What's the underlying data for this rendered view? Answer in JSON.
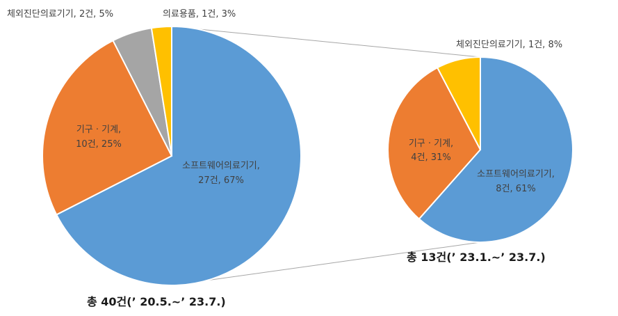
{
  "chart_data": [
    {
      "type": "pie",
      "title": "",
      "categories": [
        "소프트웨어의료기기",
        "기구 · 기계",
        "체외진단의료기기",
        "의료용품"
      ],
      "values": [
        27,
        10,
        2,
        1
      ],
      "percents": [
        67,
        25,
        5,
        3
      ],
      "labels": [
        {
          "line1": "소프트웨어의료기기,",
          "line2": "27건, 67%"
        },
        {
          "line1": "기구 · 기계,",
          "line2": "10건, 25%"
        },
        {
          "line1": "체외진단의료기기, 2건, 5%"
        },
        {
          "line1": "의료용품, 1건, 3%"
        }
      ],
      "colors": [
        "#5B9BD5",
        "#ED7D31",
        "#A5A5A5",
        "#FFC000"
      ],
      "caption": "총 40건(’ 20.5.~’ 23.7.)"
    },
    {
      "type": "pie",
      "title": "",
      "categories": [
        "소프트웨어의료기기",
        "기구 · 기계",
        "체외진단의료기기"
      ],
      "values": [
        8,
        4,
        1
      ],
      "percents": [
        61,
        31,
        8
      ],
      "labels": [
        {
          "line1": "소프트웨어의료기기,",
          "line2": "8건, 61%"
        },
        {
          "line1": "기구 · 기계,",
          "line2": "4건, 31%"
        },
        {
          "line1": "체외진단의료기기, 1건, 8%"
        }
      ],
      "colors": [
        "#5B9BD5",
        "#ED7D31",
        "#FFC000"
      ],
      "caption": "총 13건(’ 23.1.~’ 23.7.)"
    }
  ]
}
